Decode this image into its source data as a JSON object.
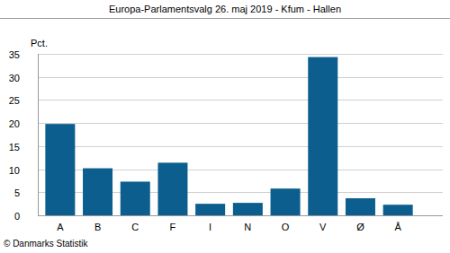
{
  "chart_data": {
    "type": "bar",
    "title": "Europa-Parlamentsvalg 26. maj 2019 - Kfum - Hallen",
    "y_label": "Pct.",
    "source": "© Danmarks Statistik",
    "categories": [
      "A",
      "B",
      "C",
      "F",
      "I",
      "N",
      "O",
      "V",
      "Ø",
      "Å"
    ],
    "values": [
      19.8,
      10.2,
      7.3,
      11.4,
      2.5,
      2.7,
      5.8,
      34.3,
      3.7,
      2.3
    ],
    "color": "#0b5e8e",
    "ylim": [
      0,
      35
    ],
    "yticks": [
      0,
      5,
      10,
      15,
      20,
      25,
      30,
      35
    ],
    "grid": true
  }
}
